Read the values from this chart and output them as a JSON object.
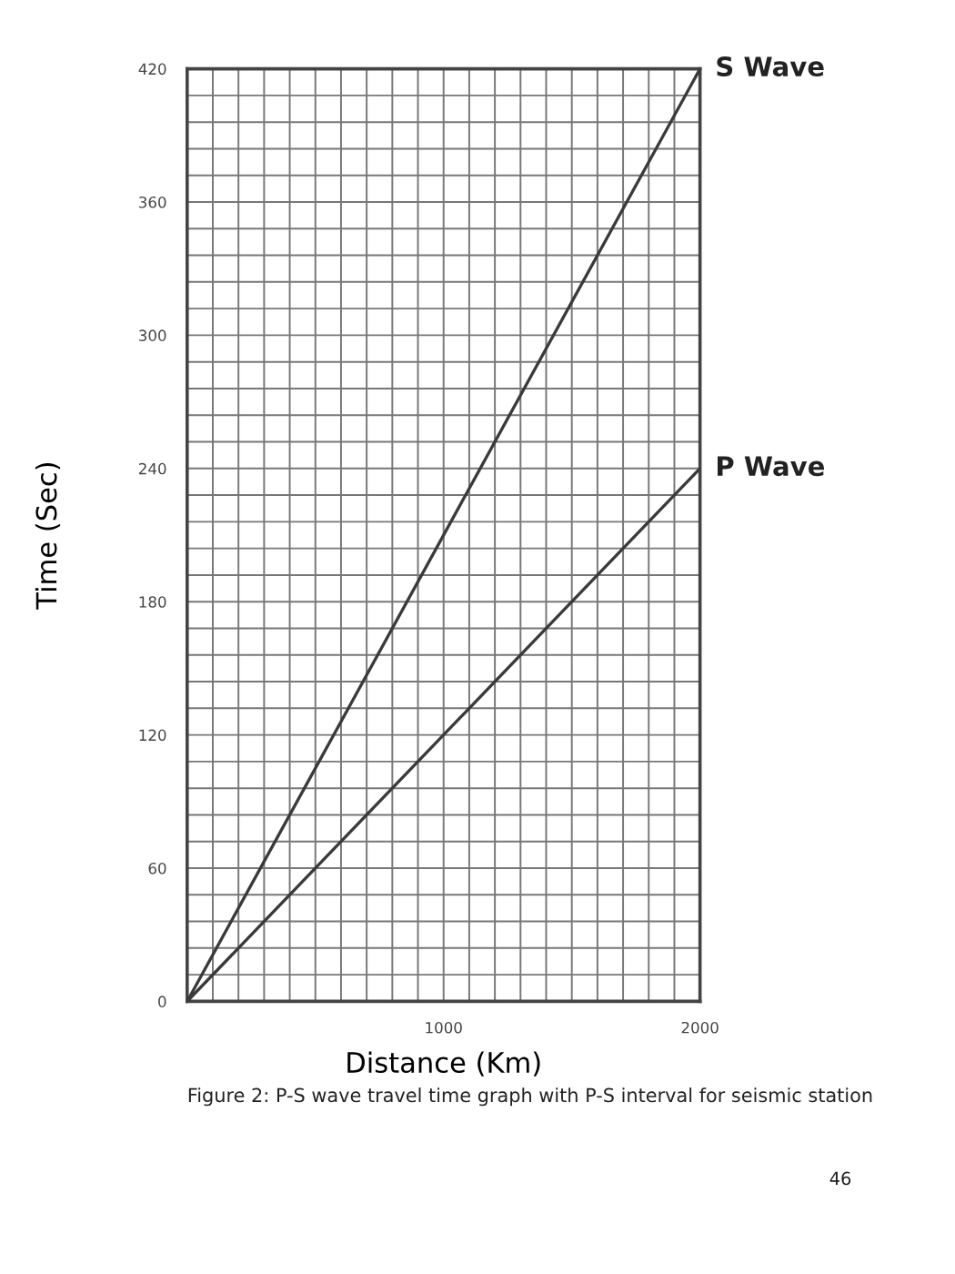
{
  "chart_data": {
    "type": "line",
    "xlabel": "Distance (Km)",
    "ylabel": "Time (Sec)",
    "x": [
      0,
      2000
    ],
    "series": [
      {
        "name": "S Wave",
        "color": "#3a3a3a",
        "values": [
          0,
          420
        ]
      },
      {
        "name": "P Wave",
        "color": "#3a3a3a",
        "values": [
          0,
          240
        ]
      }
    ],
    "xlim": [
      0,
      2000
    ],
    "ylim": [
      0,
      420
    ],
    "xticks": [
      {
        "value": 0,
        "label": null
      },
      {
        "value": 100,
        "label": null
      },
      {
        "value": 200,
        "label": null
      },
      {
        "value": 300,
        "label": null
      },
      {
        "value": 400,
        "label": null
      },
      {
        "value": 500,
        "label": null
      },
      {
        "value": 600,
        "label": null
      },
      {
        "value": 700,
        "label": null
      },
      {
        "value": 800,
        "label": null
      },
      {
        "value": 900,
        "label": null
      },
      1000,
      {
        "value": 1100,
        "label": null
      },
      {
        "value": 1200,
        "label": null
      },
      {
        "value": 1300,
        "label": null
      },
      {
        "value": 1400,
        "label": null
      },
      {
        "value": 1500,
        "label": null
      },
      {
        "value": 1600,
        "label": null
      },
      {
        "value": 1700,
        "label": null
      },
      {
        "value": 1800,
        "label": null
      },
      {
        "value": 1900,
        "label": null
      },
      2000
    ],
    "yticks": [
      0,
      {
        "value": 12,
        "label": null
      },
      {
        "value": 24,
        "label": null
      },
      {
        "value": 36,
        "label": null
      },
      {
        "value": 48,
        "label": null
      },
      60,
      {
        "value": 72,
        "label": null
      },
      {
        "value": 84,
        "label": null
      },
      {
        "value": 96,
        "label": null
      },
      {
        "value": 108,
        "label": null
      },
      120,
      {
        "value": 132,
        "label": null
      },
      {
        "value": 144,
        "label": null
      },
      {
        "value": 156,
        "label": null
      },
      {
        "value": 168,
        "label": null
      },
      180,
      {
        "value": 192,
        "label": null
      },
      {
        "value": 204,
        "label": null
      },
      {
        "value": 216,
        "label": null
      },
      {
        "value": 228,
        "label": null
      },
      240,
      {
        "value": 252,
        "label": null
      },
      {
        "value": 264,
        "label": null
      },
      {
        "value": 276,
        "label": null
      },
      {
        "value": 288,
        "label": null
      },
      300,
      {
        "value": 312,
        "label": null
      },
      {
        "value": 324,
        "label": null
      },
      {
        "value": 336,
        "label": null
      },
      {
        "value": 348,
        "label": null
      },
      360,
      {
        "value": 372,
        "label": null
      },
      {
        "value": 384,
        "label": null
      },
      {
        "value": 396,
        "label": null
      },
      {
        "value": 408,
        "label": null
      },
      420
    ],
    "grid": true,
    "legend": false,
    "marker": "none",
    "line_style": "solid",
    "annotations": [
      "Figure 2: P-S wave travel time graph with P-S interval for seismic station",
      "46"
    ]
  }
}
